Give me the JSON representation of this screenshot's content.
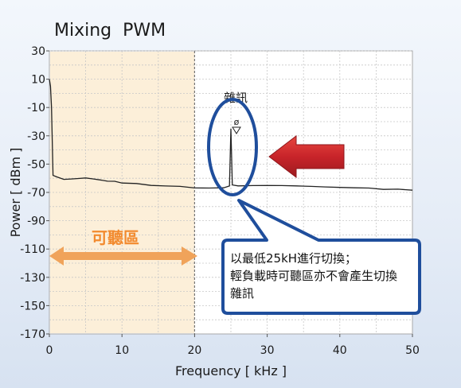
{
  "chart_data": {
    "type": "line",
    "title": "Mixing  PWM",
    "xlabel": "Frequency [ kHz ]",
    "ylabel": "Power [ dBm ]",
    "xlim": [
      0,
      50
    ],
    "ylim": [
      -170,
      30
    ],
    "xticks": [
      "0",
      "10",
      "20",
      "30",
      "40",
      "50"
    ],
    "yticks": [
      "30",
      "10",
      "-10",
      "-30",
      "-50",
      "-70",
      "-90",
      "-110",
      "-130",
      "-150",
      "-170"
    ],
    "grid": true,
    "series": [
      {
        "x": [
          0,
          0.15,
          0.3,
          0.5,
          1,
          2,
          3,
          4,
          5,
          6,
          7,
          8,
          9,
          10,
          12,
          14,
          16,
          18,
          20,
          22,
          24,
          24.8,
          25,
          25.2,
          26,
          28,
          30,
          32,
          34,
          36,
          38,
          40,
          42,
          44,
          46,
          48,
          50
        ],
        "y": [
          10,
          5,
          -10,
          -58,
          -59,
          -60,
          -60,
          -60,
          -60,
          -61,
          -62,
          -63,
          -63,
          -64,
          -64,
          -65,
          -65,
          -65,
          -66,
          -66,
          -66,
          -65,
          -25,
          -65,
          -66,
          -66,
          -66,
          -66,
          -66,
          -66,
          -66,
          -66,
          -66,
          -66,
          -67,
          -67,
          -68
        ]
      }
    ],
    "annotations": {
      "audible_band": {
        "label": "可聽區",
        "x_range": [
          0,
          20
        ]
      },
      "peak": {
        "label": "雜訊",
        "marker": "ø",
        "x": 25.2,
        "y": -25
      },
      "callout": {
        "line1": "以最低25kH進行切換；",
        "line2": "輕負載時可聽區亦不會產生切換",
        "line3": "雜訊"
      }
    },
    "colors": {
      "band": "#fcefd9",
      "band_arrow": "#f0a35a",
      "band_label": "#f28a2e",
      "callout_border": "#1f4e9c",
      "red_arrow": "#c8242a",
      "trace": "#222222"
    }
  }
}
